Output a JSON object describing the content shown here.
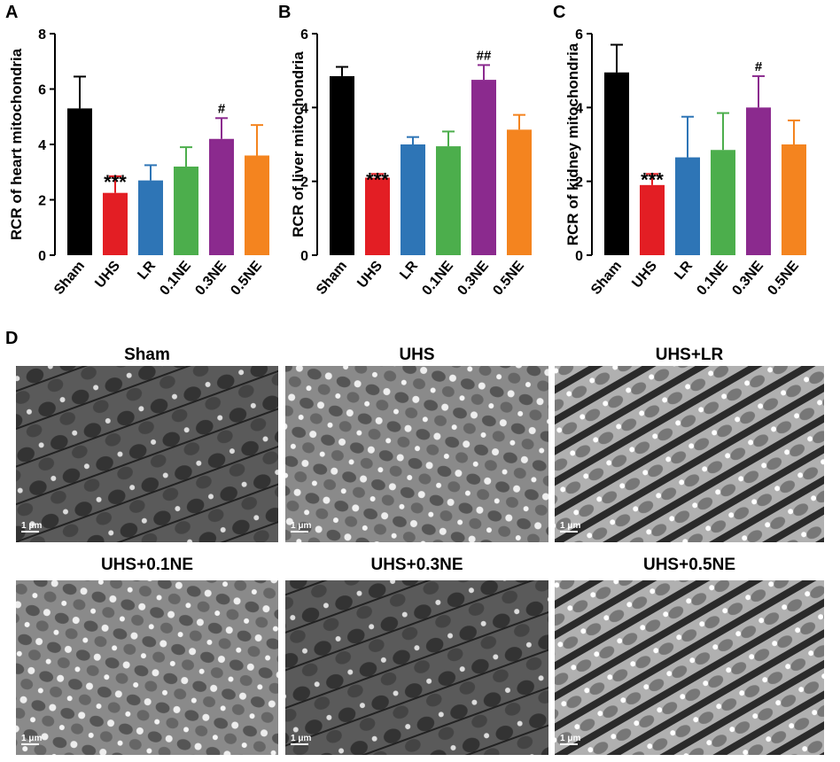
{
  "chart_data": [
    {
      "type": "bar",
      "panel": "A",
      "ylabel": "RCR of heart mitochondria",
      "categories": [
        "Sham",
        "UHS",
        "LR",
        "0.1NE",
        "0.3NE",
        "0.5NE"
      ],
      "values": [
        5.3,
        2.25,
        2.7,
        3.2,
        4.2,
        3.6
      ],
      "errors": [
        1.15,
        0.6,
        0.55,
        0.7,
        0.75,
        1.1
      ],
      "annotations": [
        null,
        "***",
        null,
        null,
        "#",
        null
      ],
      "colors": [
        "#000000",
        "#e31e24",
        "#2e75b6",
        "#4cae4c",
        "#8b2a8e",
        "#f4841f"
      ],
      "ylim": [
        0,
        8
      ],
      "yticks": [
        0,
        2,
        4,
        6,
        8
      ]
    },
    {
      "type": "bar",
      "panel": "B",
      "ylabel": "RCR of liver mitochondria",
      "categories": [
        "Sham",
        "UHS",
        "LR",
        "0.1NE",
        "0.3NE",
        "0.5NE"
      ],
      "values": [
        4.85,
        2.1,
        3.0,
        2.95,
        4.75,
        3.4
      ],
      "errors": [
        0.25,
        0.1,
        0.2,
        0.4,
        0.4,
        0.4
      ],
      "annotations": [
        null,
        "***",
        null,
        null,
        "##",
        null
      ],
      "colors": [
        "#000000",
        "#e31e24",
        "#2e75b6",
        "#4cae4c",
        "#8b2a8e",
        "#f4841f"
      ],
      "ylim": [
        0,
        6
      ],
      "yticks": [
        0,
        2,
        4,
        6
      ]
    },
    {
      "type": "bar",
      "panel": "C",
      "ylabel": "RCR of kidney mitochondria",
      "categories": [
        "Sham",
        "UHS",
        "LR",
        "0.1NE",
        "0.3NE",
        "0.5NE"
      ],
      "values": [
        4.95,
        1.9,
        2.65,
        2.85,
        4.0,
        3.0
      ],
      "errors": [
        0.75,
        0.3,
        1.1,
        1.0,
        0.85,
        0.65
      ],
      "annotations": [
        null,
        "***",
        null,
        null,
        "#",
        null
      ],
      "colors": [
        "#000000",
        "#e31e24",
        "#2e75b6",
        "#4cae4c",
        "#8b2a8e",
        "#f4841f"
      ],
      "ylim": [
        0,
        6
      ],
      "yticks": [
        0,
        2,
        4,
        6
      ]
    }
  ],
  "panel_d": {
    "label": "D",
    "images": [
      {
        "title": "Sham",
        "scale": "1 μm"
      },
      {
        "title": "UHS",
        "scale": "1 μm"
      },
      {
        "title": "UHS+LR",
        "scale": "1 μm"
      },
      {
        "title": "UHS+0.1NE",
        "scale": "1 μm"
      },
      {
        "title": "UHS+0.3NE",
        "scale": "1 μm"
      },
      {
        "title": "UHS+0.5NE",
        "scale": "1 μm"
      }
    ]
  }
}
